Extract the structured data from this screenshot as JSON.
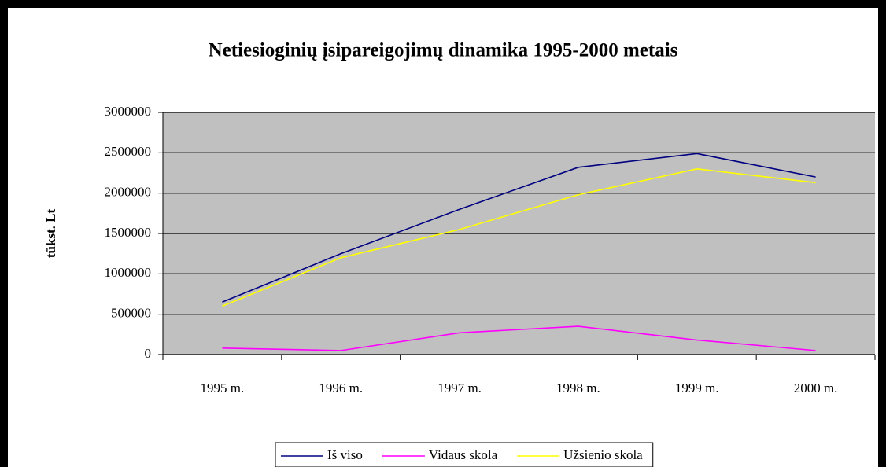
{
  "chart_data": {
    "type": "line",
    "title": "Netiesioginių įsipareigojimų dinamika 1995-2000 metais",
    "ylabel": "tūkst. Lt",
    "categories": [
      "1995 m.",
      "1996 m.",
      "1997 m.",
      "1998 m.",
      "1999 m.",
      "2000 m."
    ],
    "series": [
      {
        "name": "Iš viso",
        "color": "#000080",
        "values": [
          650000,
          1250000,
          1800000,
          2320000,
          2490000,
          2200000
        ]
      },
      {
        "name": "Vidaus skola",
        "color": "#ff00ff",
        "values": [
          80000,
          50000,
          270000,
          350000,
          180000,
          50000
        ]
      },
      {
        "name": "Užsienio skola",
        "color": "#ffff00",
        "values": [
          600000,
          1200000,
          1550000,
          1980000,
          2300000,
          2130000
        ]
      }
    ],
    "ylim": [
      0,
      3000000
    ],
    "yticks": [
      0,
      500000,
      1000000,
      1500000,
      2000000,
      2500000,
      3000000
    ],
    "grid": true,
    "legend": "bottom"
  }
}
